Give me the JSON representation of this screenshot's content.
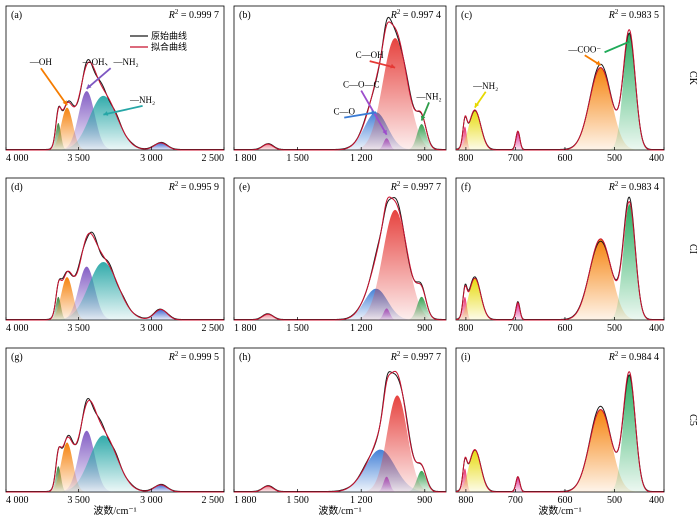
{
  "chart_data": {
    "type": "line",
    "xlabel": "波数/cm⁻¹",
    "row_labels": [
      "CK",
      "CI",
      "C5"
    ],
    "legend": [
      {
        "name": "原始曲线",
        "color": "#1a1a1a"
      },
      {
        "name": "拟合曲线",
        "color": "#c8102e"
      }
    ],
    "columns": [
      {
        "xlim": [
          4000,
          2500
        ],
        "ticks": [
          4000,
          3500,
          3000,
          2500
        ],
        "tick_labels": [
          "4 000",
          "3 500",
          "3 000",
          "2 500"
        ]
      },
      {
        "xlim": [
          1800,
          800
        ],
        "ticks": [
          1800,
          1500,
          1200,
          900
        ],
        "tick_labels": [
          "1 800",
          "1 500",
          "1 200",
          "900"
        ]
      },
      {
        "xlim": [
          820,
          400
        ],
        "ticks": [
          800,
          700,
          600,
          500,
          400
        ],
        "tick_labels": [
          "800",
          "700",
          "600",
          "500",
          "400"
        ]
      }
    ],
    "panels": [
      {
        "label": "(a)",
        "r2": "0.999 7",
        "row": 0,
        "col": 0,
        "peaks": [
          {
            "center": 3640,
            "height": 0.23,
            "width": 18,
            "color": "#2e7d32"
          },
          {
            "center": 3580,
            "height": 0.36,
            "width": 40,
            "color": "#f57c00"
          },
          {
            "center": 3445,
            "height": 0.5,
            "width": 55,
            "color": "#7e57c2"
          },
          {
            "center": 3330,
            "height": 0.46,
            "width": 95,
            "color": "#26a6a6"
          },
          {
            "center": 2935,
            "height": 0.06,
            "width": 45,
            "color": "#3a5fcd"
          }
        ],
        "annotations": [
          {
            "text": "—OH",
            "tx": 3760,
            "ty": 0.72,
            "px": 3580,
            "py": 0.38,
            "color": "#f57c00"
          },
          {
            "text": "—OH、—NH₂",
            "tx": 3280,
            "ty": 0.72,
            "px": 3445,
            "py": 0.52,
            "color": "#7e57c2"
          },
          {
            "text": "—NH₂",
            "tx": 3060,
            "ty": 0.4,
            "px": 3330,
            "py": 0.3,
            "color": "#26a6a6"
          }
        ]
      },
      {
        "label": "(b)",
        "r2": "0.997 4",
        "row": 0,
        "col": 1,
        "peaks": [
          {
            "center": 1640,
            "height": 0.05,
            "width": 25,
            "color": "#e87c8a"
          },
          {
            "center": 1130,
            "height": 0.32,
            "width": 55,
            "color": "#3a7bd5"
          },
          {
            "center": 1080,
            "height": 0.1,
            "width": 15,
            "color": "#9c4dcc"
          },
          {
            "center": 1040,
            "height": 0.95,
            "width": 58,
            "color": "#e53935"
          },
          {
            "center": 915,
            "height": 0.22,
            "width": 22,
            "color": "#2e9d4a"
          }
        ],
        "annotations": [
          {
            "text": "C—OH",
            "tx": 1160,
            "ty": 0.78,
            "px": 1040,
            "py": 0.7,
            "color": "#e53935"
          },
          {
            "text": "C—O—C",
            "tx": 1200,
            "ty": 0.53,
            "px": 1080,
            "py": 0.13,
            "color": "#9c4dcc"
          },
          {
            "text": "C—O",
            "tx": 1280,
            "ty": 0.3,
            "px": 1130,
            "py": 0.32,
            "color": "#3a7bd5"
          },
          {
            "text": "—NH₂",
            "tx": 880,
            "ty": 0.43,
            "px": 915,
            "py": 0.25,
            "color": "#2e9d4a"
          }
        ]
      },
      {
        "label": "(c)",
        "r2": "0.983 5",
        "row": 0,
        "col": 2,
        "peaks": [
          {
            "center": 802,
            "height": 0.2,
            "width": 4,
            "color": "#e91e63"
          },
          {
            "center": 782,
            "height": 0.34,
            "width": 12,
            "color": "#e6d800"
          },
          {
            "center": 695,
            "height": 0.16,
            "width": 4,
            "color": "#d81b8c"
          },
          {
            "center": 528,
            "height": 0.7,
            "width": 22,
            "color": "#f57c00"
          },
          {
            "center": 470,
            "height": 1.0,
            "width": 12,
            "color": "#1faa59"
          }
        ],
        "annotations": [
          {
            "text": "—NH₂",
            "tx": 760,
            "ty": 0.52,
            "px": 782,
            "py": 0.36,
            "color": "#e6d800"
          },
          {
            "text": "—COO⁻",
            "tx": 560,
            "ty": 0.83,
            "px": 528,
            "py": 0.72,
            "color": "#f57c00"
          }
        ],
        "extra_arrow": {
          "tx": 520,
          "ty": 0.83,
          "px": 470,
          "py": 0.92,
          "color": "#1faa59"
        }
      },
      {
        "label": "(d)",
        "r2": "0.995 9",
        "row": 1,
        "col": 0,
        "peaks": [
          {
            "center": 3640,
            "height": 0.2,
            "width": 18,
            "color": "#2e7d32"
          },
          {
            "center": 3580,
            "height": 0.37,
            "width": 40,
            "color": "#f57c00"
          },
          {
            "center": 3445,
            "height": 0.46,
            "width": 55,
            "color": "#7e57c2"
          },
          {
            "center": 3330,
            "height": 0.5,
            "width": 100,
            "color": "#26a6a6"
          },
          {
            "center": 2935,
            "height": 0.09,
            "width": 45,
            "color": "#3a5fcd"
          }
        ],
        "annotations": []
      },
      {
        "label": "(e)",
        "r2": "0.997 7",
        "row": 1,
        "col": 1,
        "peaks": [
          {
            "center": 1640,
            "height": 0.05,
            "width": 25,
            "color": "#e87c8a"
          },
          {
            "center": 1130,
            "height": 0.27,
            "width": 55,
            "color": "#3a7bd5"
          },
          {
            "center": 1080,
            "height": 0.1,
            "width": 15,
            "color": "#9c4dcc"
          },
          {
            "center": 1040,
            "height": 0.95,
            "width": 58,
            "color": "#e53935"
          },
          {
            "center": 915,
            "height": 0.2,
            "width": 22,
            "color": "#2e9d4a"
          }
        ],
        "annotations": []
      },
      {
        "label": "(f)",
        "r2": "0.983 4",
        "row": 1,
        "col": 2,
        "peaks": [
          {
            "center": 802,
            "height": 0.2,
            "width": 4,
            "color": "#e91e63"
          },
          {
            "center": 782,
            "height": 0.36,
            "width": 12,
            "color": "#e6d800"
          },
          {
            "center": 695,
            "height": 0.15,
            "width": 4,
            "color": "#d81b8c"
          },
          {
            "center": 528,
            "height": 0.7,
            "width": 22,
            "color": "#f57c00"
          },
          {
            "center": 470,
            "height": 1.0,
            "width": 12,
            "color": "#1faa59"
          }
        ],
        "annotations": []
      },
      {
        "label": "(g)",
        "r2": "0.999 5",
        "row": 2,
        "col": 0,
        "peaks": [
          {
            "center": 3640,
            "height": 0.22,
            "width": 18,
            "color": "#2e7d32"
          },
          {
            "center": 3580,
            "height": 0.42,
            "width": 40,
            "color": "#f57c00"
          },
          {
            "center": 3445,
            "height": 0.52,
            "width": 55,
            "color": "#7e57c2"
          },
          {
            "center": 3330,
            "height": 0.48,
            "width": 95,
            "color": "#26a6a6"
          },
          {
            "center": 2935,
            "height": 0.06,
            "width": 45,
            "color": "#3a5fcd"
          }
        ],
        "annotations": []
      },
      {
        "label": "(h)",
        "r2": "0.997 7",
        "row": 2,
        "col": 1,
        "peaks": [
          {
            "center": 1640,
            "height": 0.05,
            "width": 25,
            "color": "#e87c8a"
          },
          {
            "center": 1110,
            "height": 0.36,
            "width": 70,
            "color": "#3a7bd5"
          },
          {
            "center": 1080,
            "height": 0.13,
            "width": 15,
            "color": "#9c4dcc"
          },
          {
            "center": 1030,
            "height": 0.82,
            "width": 48,
            "color": "#e53935"
          },
          {
            "center": 915,
            "height": 0.18,
            "width": 22,
            "color": "#2e9d4a"
          }
        ],
        "annotations": []
      },
      {
        "label": "(i)",
        "r2": "0.984 4",
        "row": 2,
        "col": 2,
        "peaks": [
          {
            "center": 802,
            "height": 0.2,
            "width": 4,
            "color": "#e91e63"
          },
          {
            "center": 782,
            "height": 0.36,
            "width": 12,
            "color": "#e6d800"
          },
          {
            "center": 695,
            "height": 0.13,
            "width": 4,
            "color": "#d81b8c"
          },
          {
            "center": 528,
            "height": 0.7,
            "width": 22,
            "color": "#f57c00"
          },
          {
            "center": 470,
            "height": 1.0,
            "width": 12,
            "color": "#1faa59"
          }
        ],
        "annotations": []
      }
    ]
  }
}
